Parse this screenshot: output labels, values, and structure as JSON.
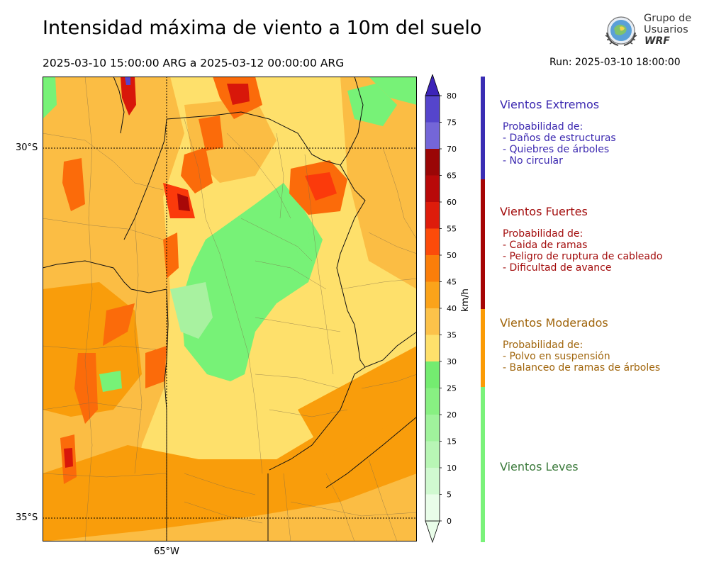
{
  "header": {
    "title": "Intensidad máxima de viento a 10m del suelo",
    "period": "2025-03-10 15:00:00 ARG  a  2025-03-12 00:00:00 ARG",
    "run": "Run: 2025-03-10 18:00:00"
  },
  "logo": {
    "line1": "Grupo de",
    "line2": "Usuarios",
    "line3": "WRF"
  },
  "map": {
    "lat_labels": [
      "30°S",
      "35°S"
    ],
    "lon_labels": [
      "65°W"
    ],
    "palette": {
      "green_light": "#77f277",
      "yellow": "#fee06b",
      "light_orange": "#fbbd44",
      "orange": "#f99d0b",
      "dark_orange": "#fb6b0a",
      "red_orange": "#fb3a0b",
      "red": "#d8170a",
      "dark_red": "#a80808"
    }
  },
  "colorbar": {
    "unit": "km/h",
    "ticks": [
      "0",
      "5",
      "10",
      "15",
      "20",
      "25",
      "30",
      "35",
      "40",
      "45",
      "50",
      "55",
      "60",
      "65",
      "70",
      "75",
      "80"
    ],
    "colors": [
      "#e9fde9",
      "#d0f9d0",
      "#b8f6b5",
      "#a0f39c",
      "#88f082",
      "#74ec70",
      "#fee06b",
      "#fcc24a",
      "#fba31a",
      "#fb7e0a",
      "#fc4b0a",
      "#de1c0b",
      "#b80909",
      "#9a0606",
      "#7466d8",
      "#5545cc",
      "#3c24b8"
    ]
  },
  "categories": [
    {
      "title": "Vientos Extremos",
      "color": "#3b28b0",
      "bar_color": "#3a2db4",
      "lines": [
        "Probabilidad de:",
        "- Daños de estructuras",
        "- Quiebres de árboles",
        "- No circular"
      ]
    },
    {
      "title": "Vientos Fuertes",
      "color": "#a30d0d",
      "bar_color": "#a60505",
      "lines": [
        "Probabilidad de:",
        "- Caida de ramas",
        "- Peligro de ruptura de cableado",
        "- Dificultad de avance"
      ]
    },
    {
      "title": "Vientos Moderados",
      "color": "#a0650c",
      "bar_color": "#fb9b05",
      "lines": [
        "Probabilidad de:",
        "- Polvo en suspensión",
        "- Balanceo de ramas de árboles"
      ]
    },
    {
      "title": "Vientos Leves",
      "color": "#3b7a3b",
      "bar_color": "#7af27a",
      "lines": []
    }
  ]
}
